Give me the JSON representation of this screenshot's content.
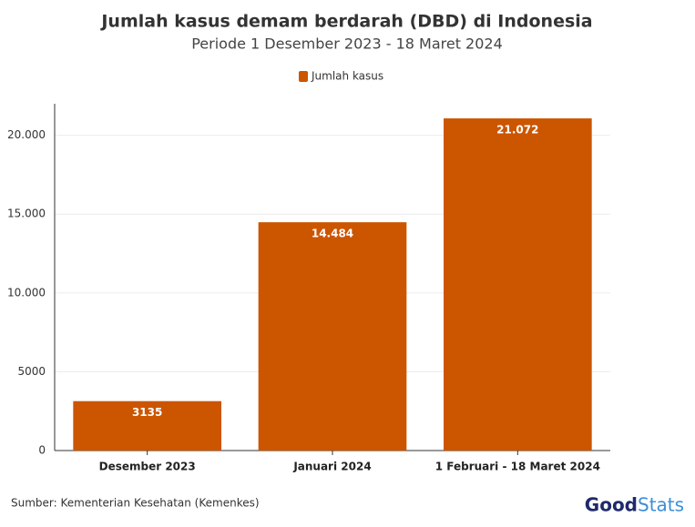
{
  "chart_data": {
    "type": "bar",
    "title": "Jumlah kasus demam berdarah (DBD) di Indonesia",
    "subtitle": "Periode 1 Desember 2023 - 18 Maret 2024",
    "categories": [
      "Desember 2023",
      "Januari 2024",
      "1 Februari - 18 Maret 2024"
    ],
    "series": [
      {
        "name": "Jumlah kasus",
        "color": "#cc5500",
        "values": [
          3135,
          14484,
          21072
        ],
        "value_labels": [
          "3135",
          "14.484",
          "21.072"
        ]
      }
    ],
    "ylim": [
      0,
      22000
    ],
    "yticks": [
      0,
      5000,
      {
        "value": 10000,
        "label": "10.000"
      },
      {
        "value": 15000,
        "label": "15.000"
      },
      {
        "value": 20000,
        "label": "20.000"
      }
    ],
    "grid": true,
    "legend": "top",
    "source": "Sumber: Kementerian Kesehatan (Kemenkes)",
    "logo": [
      "Good",
      "Stats"
    ]
  }
}
